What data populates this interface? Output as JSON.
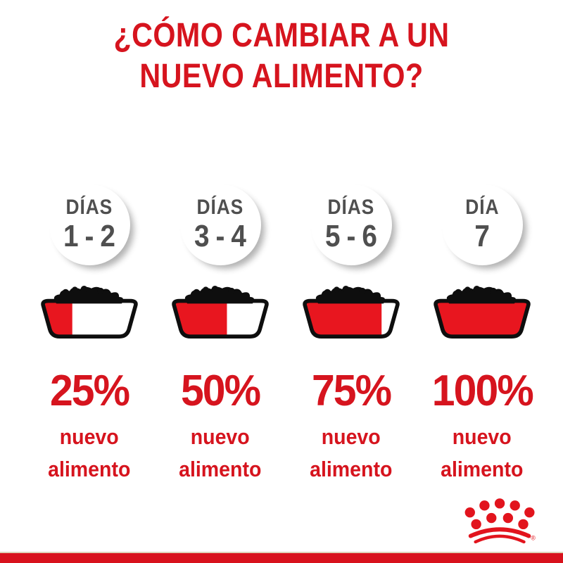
{
  "title": {
    "line1": "¿CÓMO CAMBIAR A UN",
    "line2": "NUEVO ALIMENTO?"
  },
  "columns": [
    {
      "day_label": "DÍAS",
      "day_range": "1 - 2",
      "percent_label": "25%",
      "fill_percent": 25,
      "caption_line1": "nuevo",
      "caption_line2": "alimento"
    },
    {
      "day_label": "DÍAS",
      "day_range": "3 - 4",
      "percent_label": "50%",
      "fill_percent": 50,
      "caption_line1": "nuevo",
      "caption_line2": "alimento"
    },
    {
      "day_label": "DÍAS",
      "day_range": "5 - 6",
      "percent_label": "75%",
      "fill_percent": 75,
      "caption_line1": "nuevo",
      "caption_line2": "alimento"
    },
    {
      "day_label": "DÍA",
      "day_range": "7",
      "percent_label": "100%",
      "fill_percent": 100,
      "caption_line1": "nuevo",
      "caption_line2": "alimento"
    }
  ],
  "brand": {
    "logo": "royal-canin-crown-logo",
    "registered_mark": "®"
  },
  "colors": {
    "accent_red": "#d6141e",
    "bowl_red": "#e8161f",
    "logo_red": "#e2141d",
    "bar_red": "#d8121c",
    "bar_top_line": "#ded3b8",
    "day_text": "#4f4f4f",
    "outline_black": "#0e0e0e"
  }
}
